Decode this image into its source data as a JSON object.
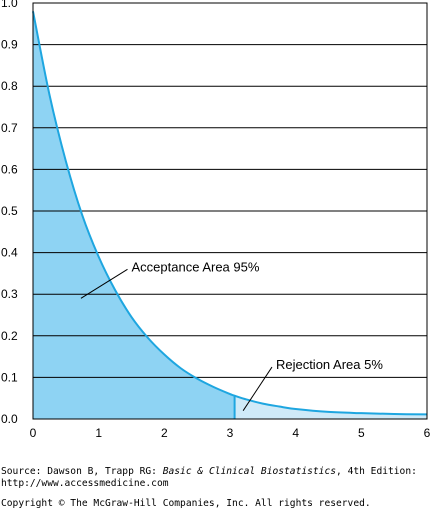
{
  "chart_data": {
    "type": "area",
    "xlim": [
      0,
      6
    ],
    "ylim": [
      0,
      1.0
    ],
    "x_ticks": [
      "0",
      "1",
      "2",
      "3",
      "4",
      "5",
      "6"
    ],
    "y_ticks": [
      "0.0",
      "0.1",
      "0.2",
      "0.3",
      "0.4",
      "0.5",
      "0.6",
      "0.7",
      "0.8",
      "0.9",
      "1.0"
    ],
    "grid": "horizontal",
    "critical_value": 3.07,
    "curve": {
      "x": [
        0,
        0.25,
        0.5,
        0.75,
        1.0,
        1.25,
        1.5,
        1.75,
        2.0,
        2.25,
        2.5,
        2.75,
        3.0,
        3.07,
        3.25,
        3.5,
        3.75,
        4.0,
        4.5,
        5.0,
        5.5,
        6.0
      ],
      "y": [
        0.98,
        0.78,
        0.62,
        0.49,
        0.39,
        0.31,
        0.245,
        0.195,
        0.155,
        0.122,
        0.097,
        0.077,
        0.06,
        0.056,
        0.047,
        0.037,
        0.03,
        0.024,
        0.017,
        0.014,
        0.012,
        0.011
      ]
    },
    "annotations": [
      {
        "label": "Acceptance Area  95%",
        "x": 1.5,
        "y": 0.355,
        "arrow_to": [
          0.73,
          0.29
        ]
      },
      {
        "label": "Rejection Area  5%",
        "x": 3.7,
        "y": 0.12,
        "arrow_to": [
          3.2,
          0.02
        ]
      }
    ],
    "colors": {
      "curve": "#1ea6e0",
      "acceptance_fill": "#8ed3f3",
      "rejection_fill": "#cfeaf8",
      "grid": "#000000"
    }
  },
  "footer": {
    "source_prefix": "Source: Dawson B, Trapp RG: ",
    "source_title": "Basic & Clinical Biostatistics",
    "source_suffix": ", 4th Edition:",
    "url": "http://www.accessmedicine.com",
    "copyright": "Copyright © The McGraw-Hill Companies, Inc. All rights reserved."
  }
}
